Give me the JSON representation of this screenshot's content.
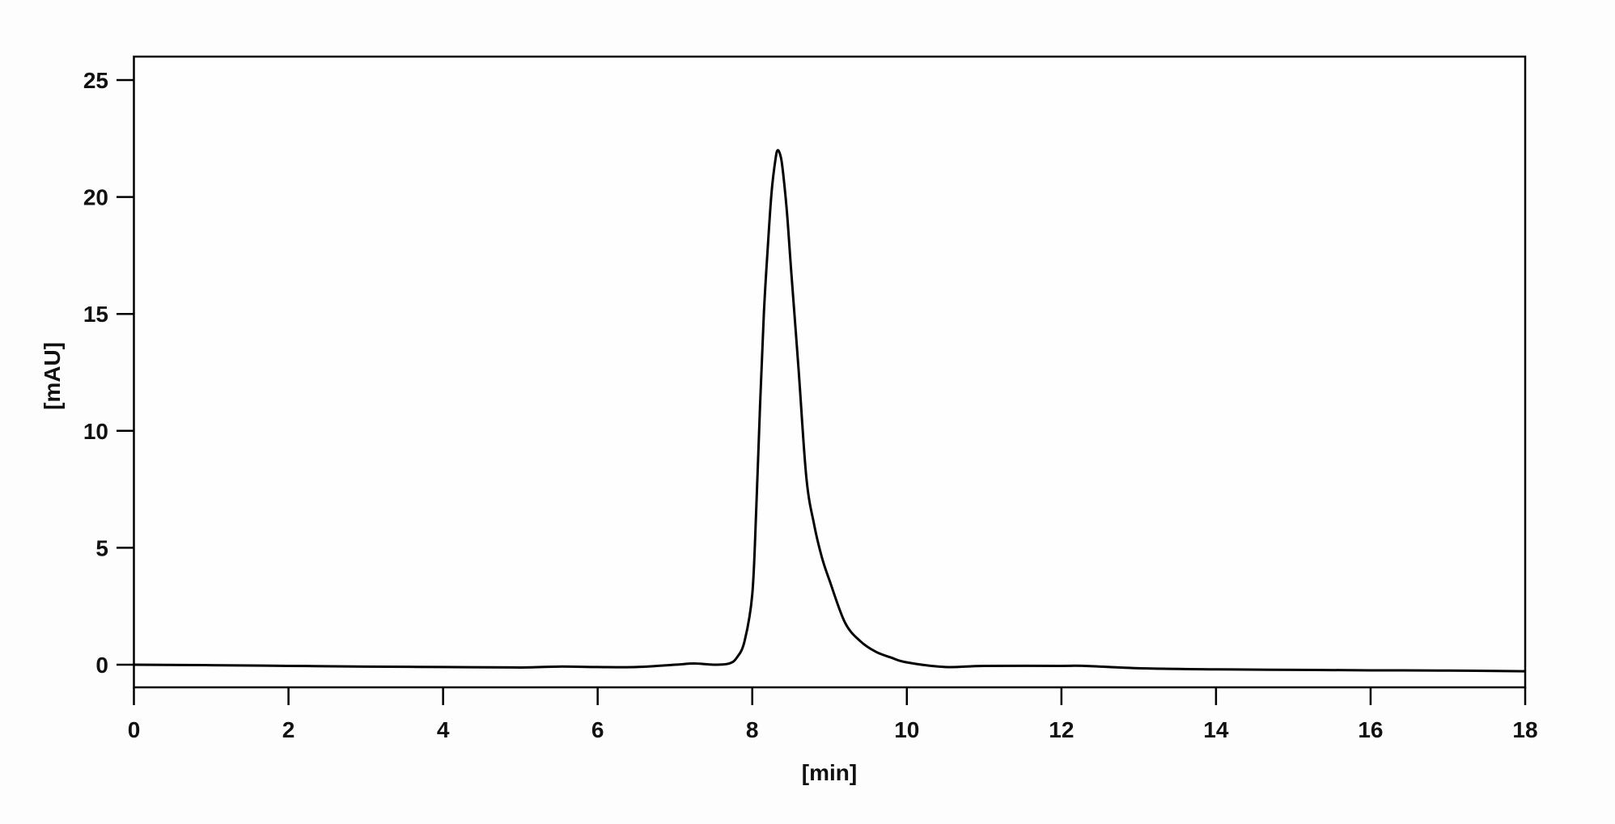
{
  "chart_data": {
    "type": "line",
    "title": "",
    "xlabel": "[min]",
    "ylabel": "[mAU]",
    "xlim": [
      0,
      18
    ],
    "ylim": [
      -1,
      26
    ],
    "xticks": [
      "0",
      "2",
      "4",
      "6",
      "8",
      "10",
      "12",
      "14",
      "16",
      "18"
    ],
    "yticks": [
      "0",
      "5",
      "10",
      "15",
      "20",
      "25"
    ],
    "grid": false,
    "line_color": "#000000",
    "series": [
      {
        "x": [
          0,
          1,
          2,
          3,
          4,
          5,
          5.5,
          6,
          6.5,
          7,
          7.25,
          7.5,
          7.7,
          7.8,
          7.9,
          8.0,
          8.05,
          8.1,
          8.15,
          8.2,
          8.25,
          8.3,
          8.33,
          8.37,
          8.4,
          8.45,
          8.5,
          8.6,
          8.7,
          8.8,
          8.9,
          9.0,
          9.2,
          9.4,
          9.6,
          9.8,
          10,
          10.5,
          11,
          12,
          12.3,
          13,
          14,
          15,
          16,
          17,
          18
        ],
        "y": [
          0,
          -0.02,
          -0.05,
          -0.08,
          -0.1,
          -0.12,
          -0.08,
          -0.1,
          -0.1,
          0.0,
          0.05,
          0.0,
          0.05,
          0.3,
          1.0,
          3.0,
          6.5,
          11.0,
          15.0,
          17.8,
          20.2,
          21.6,
          22.0,
          21.7,
          21.0,
          19.3,
          17.0,
          12.6,
          8.0,
          6.0,
          4.6,
          3.6,
          1.8,
          1.0,
          0.55,
          0.3,
          0.1,
          -0.1,
          -0.05,
          -0.05,
          -0.05,
          -0.15,
          -0.2,
          -0.22,
          -0.24,
          -0.25,
          -0.28
        ]
      }
    ]
  }
}
